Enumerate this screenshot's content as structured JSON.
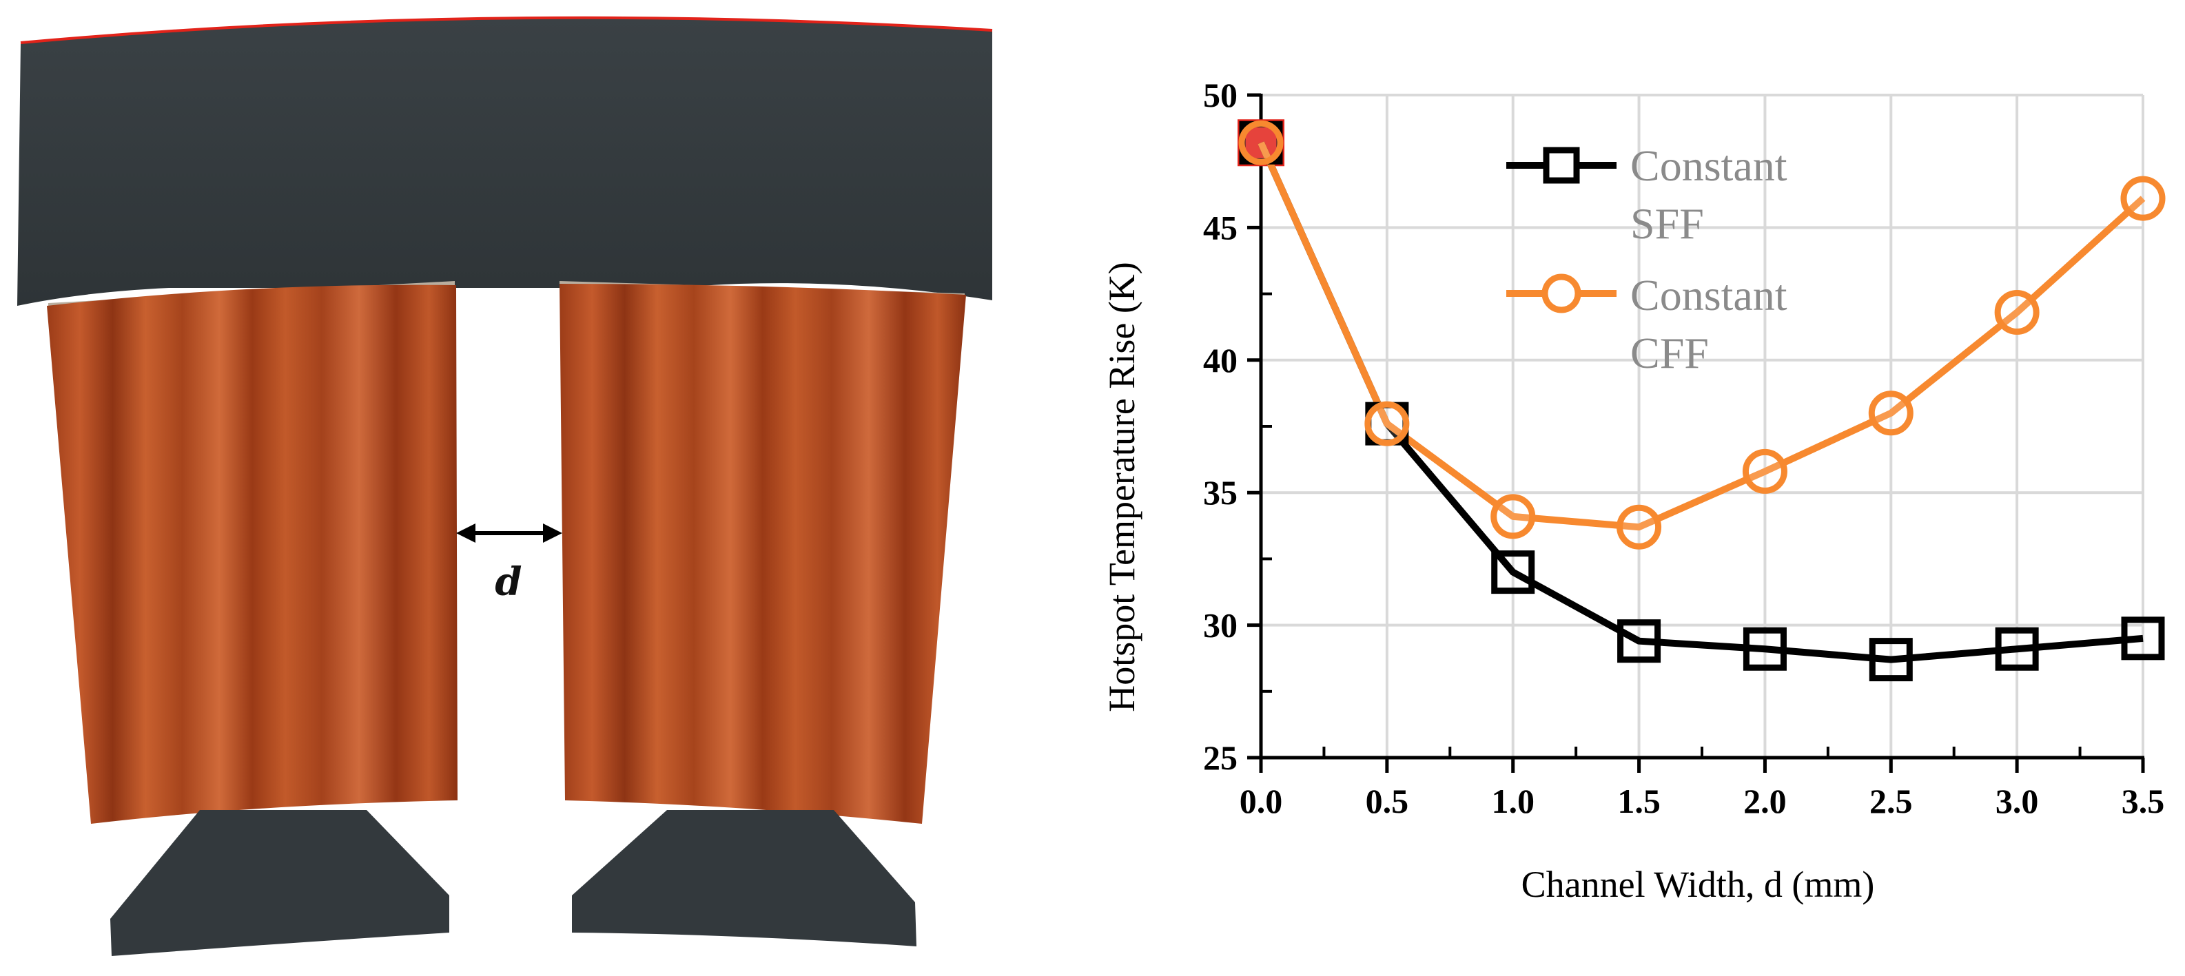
{
  "illustration": {
    "dimension_label": "d",
    "colors": {
      "core": "#33393d",
      "coil": "#b24a22",
      "coil_dark": "#8e3414",
      "coil_light": "#cf6a3c",
      "edge": "#e2231a",
      "insulation": "#b9ae9f"
    }
  },
  "chart_data": {
    "type": "line",
    "xlabel": "Channel Width, d (mm)",
    "ylabel": "Hotspot Temperature Rise (K)",
    "xlim": [
      0,
      3.5
    ],
    "ylim": [
      25,
      50
    ],
    "x_ticks": [
      "0.0",
      "0.5",
      "1.0",
      "1.5",
      "2.0",
      "2.5",
      "3.0",
      "3.5"
    ],
    "y_ticks": [
      "25",
      "30",
      "35",
      "40",
      "45",
      "50"
    ],
    "grid": true,
    "legend_position": "top-center",
    "series": [
      {
        "name": "Constant SFF",
        "legend_lines": [
          "Constant",
          "SFF"
        ],
        "marker": "square",
        "color": "#000000",
        "x": [
          0.0,
          0.5,
          1.0,
          1.5,
          2.0,
          2.5,
          3.0,
          3.5
        ],
        "y": [
          48.2,
          37.6,
          32.0,
          29.4,
          29.1,
          28.7,
          29.1,
          29.5
        ]
      },
      {
        "name": "Constant CFF",
        "legend_lines": [
          "Constant",
          "CFF"
        ],
        "marker": "circle",
        "color": "#f7892f",
        "x": [
          0.0,
          0.5,
          1.0,
          1.5,
          2.0,
          2.5,
          3.0,
          3.5
        ],
        "y": [
          48.2,
          37.6,
          34.1,
          33.7,
          35.8,
          38.0,
          41.8,
          46.1
        ]
      }
    ],
    "highlight_point": {
      "x": 0.0,
      "y": 48.2,
      "color": "#e2231a"
    }
  }
}
